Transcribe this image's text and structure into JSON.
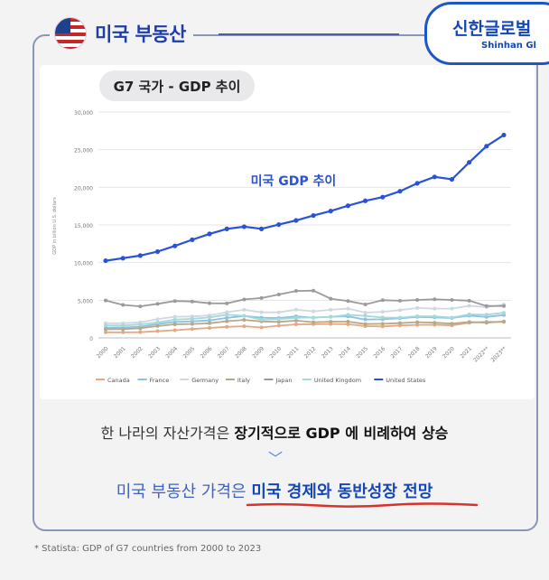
{
  "header": {
    "title": "미국 부동산",
    "flag_icon": "us-flag-icon"
  },
  "brand": {
    "name": "신한글로벌",
    "sub": "Shinhan Gl"
  },
  "chart_title": "G7 국가 - GDP 추이",
  "annotation": "미국 GDP 추이",
  "footer": {
    "line1_prefix": "한 나라의 자산가격은 ",
    "line1_bold": "장기적으로 GDP 에 비례하여 상승",
    "chevron": "﹀",
    "line2_prefix": "미국 부동산 가격은 ",
    "line2_bold": "미국 경제와 동반성장 전망"
  },
  "source": "* Statista: GDP of G7 countries from 2000 to 2023",
  "chart_data": {
    "type": "line",
    "ylabel": "GDP in billion U.S. dollars",
    "ylim": [
      0,
      30000
    ],
    "yticks": [
      "0",
      "5,000",
      "10,000",
      "15,000",
      "20,000",
      "25,000",
      "30,000"
    ],
    "grid": true,
    "legend_position": "bottom",
    "categories": [
      "2000",
      "2001",
      "2002",
      "2003",
      "2004",
      "2005",
      "2006",
      "2007",
      "2008",
      "2009",
      "2010",
      "2011",
      "2012",
      "2013",
      "2014",
      "2015",
      "2016",
      "2017",
      "2018",
      "2019",
      "2020",
      "2021",
      "2022**",
      "2023**"
    ],
    "series": [
      {
        "name": "Canada",
        "color": "#e4a882",
        "values": [
          742,
          737,
          758,
          893,
          1025,
          1174,
          1319,
          1468,
          1552,
          1376,
          1617,
          1793,
          1828,
          1847,
          1806,
          1556,
          1528,
          1649,
          1725,
          1744,
          1655,
          2011,
          2140,
          2117
        ]
      },
      {
        "name": "France",
        "color": "#8fc0e0",
        "values": [
          1362,
          1376,
          1494,
          1841,
          2115,
          2197,
          2320,
          2657,
          2918,
          2690,
          2643,
          2862,
          2683,
          2811,
          2855,
          2439,
          2472,
          2595,
          2790,
          2728,
          2636,
          2957,
          2784,
          3031
        ]
      },
      {
        "name": "Germany",
        "color": "#cfd8e0",
        "values": [
          1947,
          1944,
          2068,
          2496,
          2809,
          2846,
          2992,
          3421,
          3730,
          3398,
          3396,
          3744,
          3527,
          3733,
          3889,
          3357,
          3469,
          3682,
          3974,
          3889,
          3887,
          4260,
          4082,
          4430
        ]
      },
      {
        "name": "Italy",
        "color": "#b7a88a",
        "values": [
          1142,
          1162,
          1266,
          1569,
          1799,
          1850,
          1945,
          2205,
          2391,
          2186,
          2126,
          2292,
          2086,
          2142,
          2162,
          1836,
          1876,
          1961,
          2092,
          2011,
          1896,
          2108,
          2011,
          2186
        ]
      },
      {
        "name": "Japan",
        "color": "#9a9a9a",
        "values": [
          4968,
          4375,
          4182,
          4519,
          4894,
          4831,
          4601,
          4579,
          5106,
          5289,
          5759,
          6234,
          6272,
          5212,
          4897,
          4445,
          5004,
          4931,
          5037,
          5124,
          5041,
          4941,
          4232,
          4231
        ]
      },
      {
        "name": "United Kingdom",
        "color": "#a3d9d9",
        "values": [
          1665,
          1646,
          1775,
          2057,
          2422,
          2538,
          2713,
          3090,
          2929,
          2412,
          2491,
          2663,
          2707,
          2785,
          3065,
          2933,
          2699,
          2683,
          2878,
          2857,
          2704,
          3123,
          3071,
          3332
        ]
      },
      {
        "name": "United States",
        "color": "#2952d9",
        "values": [
          10252,
          10582,
          10936,
          11458,
          12214,
          13037,
          13815,
          14475,
          14769,
          14478,
          15049,
          15600,
          16254,
          16843,
          17551,
          18206,
          18695,
          19477,
          20533,
          21381,
          21060,
          23315,
          25464,
          26950
        ]
      }
    ]
  }
}
